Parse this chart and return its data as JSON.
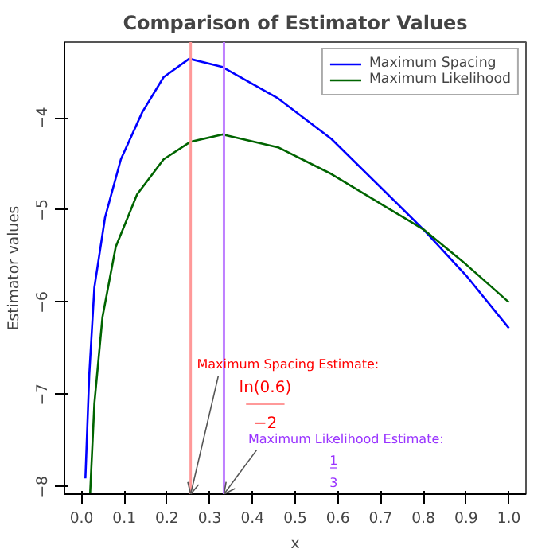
{
  "chart_data": {
    "type": "line",
    "title": "Comparison of Estimator Values",
    "xlabel": "x",
    "ylabel": "Estimator values",
    "xlim": [
      -0.04,
      1.04
    ],
    "ylim": [
      -8.08,
      -3.18
    ],
    "xticks": [
      {
        "value": 0,
        "label": "0.0"
      },
      0.1,
      0.2,
      0.3,
      0.4,
      0.5,
      0.6,
      0.7,
      0.8,
      0.9,
      {
        "value": 1,
        "label": "1.0"
      }
    ],
    "yticks": [
      -8,
      -7,
      -6,
      -5,
      -4
    ],
    "series": [
      {
        "name": "Maximum Spacing",
        "color": "#0000ff",
        "x": [
          0.009,
          0.018,
          0.03,
          0.055,
          0.092,
          0.142,
          0.192,
          0.252,
          0.33,
          0.46,
          0.585,
          0.71,
          0.8,
          0.9,
          1.0
        ],
        "values": [
          -7.91,
          -6.79,
          -5.84,
          -5.08,
          -4.45,
          -3.94,
          -3.56,
          -3.36,
          -3.45,
          -3.79,
          -4.23,
          -4.8,
          -5.21,
          -5.71,
          -6.28
        ]
      },
      {
        "name": "Maximum Likelihood",
        "color": "#006400",
        "x": [
          0.02,
          0.03,
          0.049,
          0.08,
          0.13,
          0.192,
          0.255,
          0.33,
          0.46,
          0.585,
          0.71,
          0.8,
          0.9,
          1.0
        ],
        "values": [
          -8.08,
          -7.1,
          -6.16,
          -5.4,
          -4.83,
          -4.45,
          -4.26,
          -4.18,
          -4.32,
          -4.61,
          -4.96,
          -5.21,
          -5.59,
          -6.0
        ]
      }
    ],
    "ref_lines": [
      {
        "axis": "x",
        "value": 0.2554,
        "label": null,
        "color": "#ff9999"
      },
      {
        "axis": "x",
        "value": 0.3333,
        "label": null,
        "color": "#bf80ff"
      }
    ],
    "annotations": [
      {
        "text": "Maximum Spacing Estimate:",
        "x": 0.2554,
        "y": -8.08
      },
      "ln(0.6)",
      "−2",
      {
        "text": "Maximum Likelihood Estimate:",
        "x": 0.3333,
        "y": -8.08
      },
      "1",
      "3"
    ],
    "legend": "top right",
    "grid": false
  }
}
